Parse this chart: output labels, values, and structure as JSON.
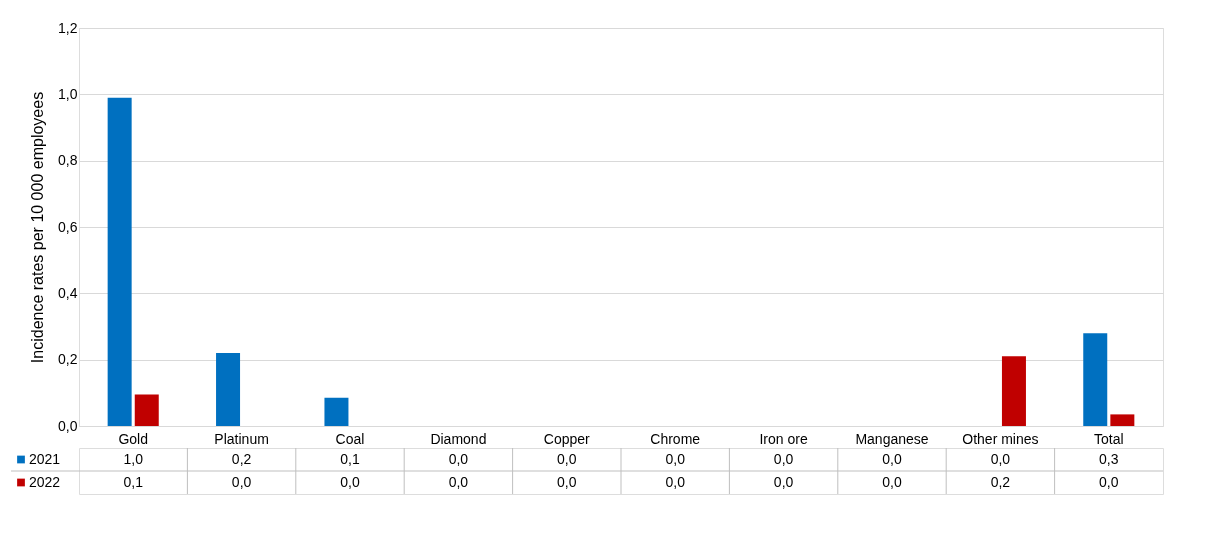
{
  "chart_data": {
    "type": "bar",
    "ylabel": "Incidence rates per 10 000 employees",
    "categories": [
      "Gold",
      "Platinum",
      "Coal",
      "Diamond",
      "Copper",
      "Chrome",
      "Iron ore",
      "Manganese",
      "Other mines",
      "Total"
    ],
    "series": [
      {
        "name": "2021",
        "color": "#0070c0",
        "values": [
          0.99,
          0.22,
          0.085,
          0,
          0,
          0,
          0,
          0,
          0,
          0.28
        ],
        "value_labels": [
          "1,0",
          "0,2",
          "0,1",
          "0,0",
          "0,0",
          "0,0",
          "0,0",
          "0,0",
          "0,0",
          "0,3"
        ]
      },
      {
        "name": "2022",
        "color": "#c00000",
        "values": [
          0.095,
          0,
          0,
          0,
          0,
          0,
          0,
          0,
          0.21,
          0.035
        ],
        "value_labels": [
          "0,1",
          "0,0",
          "0,0",
          "0,0",
          "0,0",
          "0,0",
          "0,0",
          "0,0",
          "0,2",
          "0,0"
        ]
      }
    ],
    "ylim": [
      0,
      1.2
    ],
    "yticks": [
      {
        "value": 0,
        "label": "0,0"
      },
      {
        "value": 0.2,
        "label": "0,2"
      },
      {
        "value": 0.4,
        "label": "0,4"
      },
      {
        "value": 0.6,
        "label": "0,6"
      },
      {
        "value": 0.8,
        "label": "0,8"
      },
      {
        "value": 1.0,
        "label": "1,0"
      },
      {
        "value": 1.2,
        "label": "1,2"
      }
    ],
    "grid": "y",
    "legend": "bottom left"
  }
}
